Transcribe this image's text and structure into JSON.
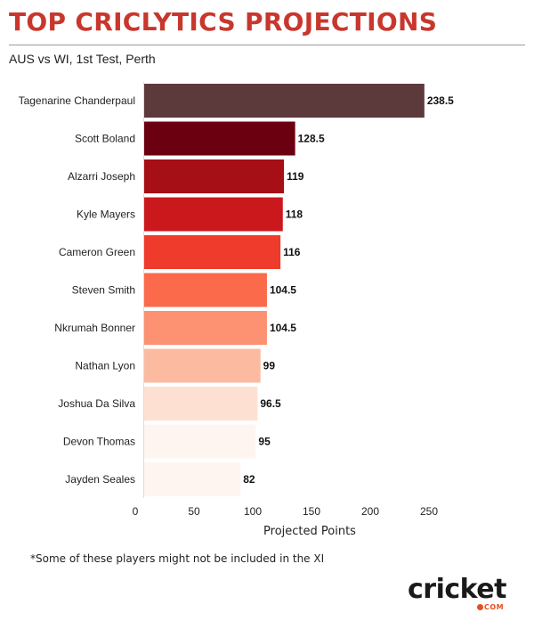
{
  "header": {
    "title": "TOP CRICLYTICS PROJECTIONS",
    "subtitle": "AUS vs WI, 1st Test, Perth"
  },
  "chart_data": {
    "type": "bar",
    "orientation": "horizontal",
    "categories": [
      "Tagenarine Chanderpaul",
      "Scott Boland",
      "Alzarri Joseph",
      "Kyle Mayers",
      "Cameron Green",
      "Steven Smith",
      "Nkrumah Bonner",
      "Nathan Lyon",
      "Joshua Da Silva",
      "Devon Thomas",
      "Jayden Seales"
    ],
    "values": [
      238.5,
      128.5,
      119,
      118,
      116,
      104.5,
      104.5,
      99,
      96.5,
      95,
      82
    ],
    "value_labels": [
      "238.5",
      "128.5",
      "119",
      "118",
      "116",
      "104.5",
      "104.5",
      "99",
      "96.5",
      "95",
      "82"
    ],
    "colors": [
      "#5c3a3c",
      "#6b0010",
      "#a50f15",
      "#cb181d",
      "#ef3b2c",
      "#fb6a4a",
      "#fc9272",
      "#fcbba1",
      "#fee0d2",
      "#fff5f0",
      "#fff5f0"
    ],
    "xlabel": "Projected Points",
    "xlim": [
      0,
      250
    ],
    "xticks": [
      0,
      50,
      100,
      150,
      200,
      250
    ],
    "xtick_labels": [
      "0",
      "50",
      "100",
      "150",
      "200",
      "250"
    ],
    "grid": false,
    "legend": "none"
  },
  "footnote": "*Some of these players might not be included in the XI",
  "logo": {
    "word": "cricket",
    "suffix": "COM",
    "accent_color": "#e94e1b"
  }
}
